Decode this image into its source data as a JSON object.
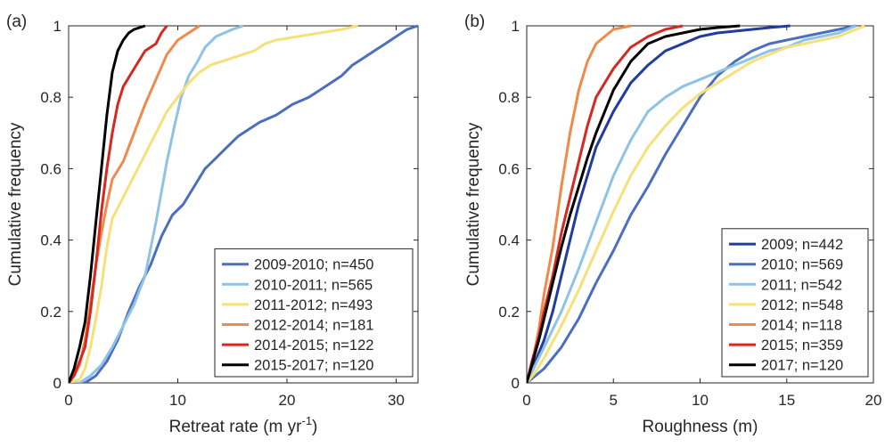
{
  "chart_data": [
    {
      "panel_label": "(a)",
      "type": "line",
      "xlabel": "Retreat rate (m yr",
      "xlabel_superscript": "-1",
      "xlabel_suffix": ")",
      "ylabel": "Cumulative frequency",
      "xlim": [
        0,
        32
      ],
      "ylim": [
        0,
        1
      ],
      "xticks": [
        "0",
        "10",
        "20",
        "30"
      ],
      "xtick_values": [
        0,
        10,
        20,
        30
      ],
      "yticks": [
        "0",
        "0.2",
        "0.4",
        "0.6",
        "0.8",
        "1"
      ],
      "ytick_values": [
        0,
        0.2,
        0.4,
        0.6,
        0.8,
        1
      ],
      "grid": false,
      "legend_position": "bottom-right",
      "series": [
        {
          "name": "2009-2010; n=450",
          "color": "#4a6fbf",
          "points": [
            [
              0,
              0
            ],
            [
              1.5,
              0
            ],
            [
              2.5,
              0.02
            ],
            [
              3.5,
              0.06
            ],
            [
              4.5,
              0.12
            ],
            [
              5.5,
              0.2
            ],
            [
              6.5,
              0.27
            ],
            [
              7.5,
              0.33
            ],
            [
              8.5,
              0.41
            ],
            [
              9.5,
              0.47
            ],
            [
              10.5,
              0.5
            ],
            [
              11.5,
              0.55
            ],
            [
              12.5,
              0.6
            ],
            [
              13.5,
              0.63
            ],
            [
              14.5,
              0.66
            ],
            [
              15.5,
              0.69
            ],
            [
              16.5,
              0.71
            ],
            [
              17.5,
              0.73
            ],
            [
              19,
              0.75
            ],
            [
              20.5,
              0.78
            ],
            [
              22,
              0.8
            ],
            [
              23.5,
              0.83
            ],
            [
              25,
              0.86
            ],
            [
              26,
              0.89
            ],
            [
              27,
              0.91
            ],
            [
              28,
              0.93
            ],
            [
              29,
              0.95
            ],
            [
              30,
              0.97
            ],
            [
              31,
              0.99
            ],
            [
              32,
              1
            ]
          ]
        },
        {
          "name": "2010-2011; n=565",
          "color": "#8fc3e6",
          "points": [
            [
              0,
              0
            ],
            [
              1,
              0
            ],
            [
              2,
              0.02
            ],
            [
              3,
              0.05
            ],
            [
              4,
              0.1
            ],
            [
              5,
              0.16
            ],
            [
              6,
              0.22
            ],
            [
              7,
              0.3
            ],
            [
              8,
              0.45
            ],
            [
              9,
              0.62
            ],
            [
              9.7,
              0.72
            ],
            [
              10.3,
              0.8
            ],
            [
              11,
              0.86
            ],
            [
              11.8,
              0.9
            ],
            [
              12.5,
              0.94
            ],
            [
              13.5,
              0.97
            ],
            [
              15,
              0.99
            ],
            [
              16,
              1
            ]
          ]
        },
        {
          "name": "2011-2012; n=493",
          "color": "#f5e07a",
          "points": [
            [
              0,
              0
            ],
            [
              1,
              0.01
            ],
            [
              1.5,
              0.04
            ],
            [
              2,
              0.1
            ],
            [
              2.5,
              0.18
            ],
            [
              3,
              0.27
            ],
            [
              3.5,
              0.38
            ],
            [
              4,
              0.46
            ],
            [
              5,
              0.52
            ],
            [
              6,
              0.58
            ],
            [
              7,
              0.64
            ],
            [
              8,
              0.7
            ],
            [
              9,
              0.76
            ],
            [
              10,
              0.8
            ],
            [
              11,
              0.84
            ],
            [
              12,
              0.87
            ],
            [
              13,
              0.89
            ],
            [
              14,
              0.9
            ],
            [
              15,
              0.91
            ],
            [
              16,
              0.92
            ],
            [
              17,
              0.93
            ],
            [
              18,
              0.95
            ],
            [
              19,
              0.96
            ],
            [
              21,
              0.97
            ],
            [
              23,
              0.98
            ],
            [
              25,
              0.99
            ],
            [
              26.5,
              1
            ]
          ]
        },
        {
          "name": "2012-2014; n=181",
          "color": "#f08a4b",
          "points": [
            [
              0,
              0
            ],
            [
              0.5,
              0.02
            ],
            [
              1,
              0.05
            ],
            [
              1.5,
              0.12
            ],
            [
              2,
              0.22
            ],
            [
              2.5,
              0.33
            ],
            [
              3,
              0.42
            ],
            [
              3.5,
              0.5
            ],
            [
              4,
              0.57
            ],
            [
              5,
              0.62
            ],
            [
              6,
              0.7
            ],
            [
              7,
              0.78
            ],
            [
              8,
              0.85
            ],
            [
              9,
              0.92
            ],
            [
              10,
              0.96
            ],
            [
              11,
              0.98
            ],
            [
              12,
              1
            ]
          ]
        },
        {
          "name": "2014-2015; n=122",
          "color": "#d7281f",
          "points": [
            [
              0,
              0
            ],
            [
              0.5,
              0.02
            ],
            [
              1,
              0.06
            ],
            [
              1.5,
              0.1
            ],
            [
              2,
              0.2
            ],
            [
              2.5,
              0.33
            ],
            [
              3,
              0.48
            ],
            [
              3.5,
              0.6
            ],
            [
              4,
              0.7
            ],
            [
              4.5,
              0.78
            ],
            [
              5,
              0.83
            ],
            [
              6,
              0.88
            ],
            [
              7,
              0.93
            ],
            [
              8,
              0.95
            ],
            [
              8.5,
              0.98
            ],
            [
              9,
              1
            ]
          ]
        },
        {
          "name": "2015-2017; n=120",
          "color": "#000000",
          "points": [
            [
              0,
              0
            ],
            [
              0.5,
              0.04
            ],
            [
              1,
              0.1
            ],
            [
              1.5,
              0.17
            ],
            [
              2,
              0.3
            ],
            [
              2.5,
              0.45
            ],
            [
              3,
              0.6
            ],
            [
              3.5,
              0.75
            ],
            [
              4,
              0.87
            ],
            [
              4.5,
              0.93
            ],
            [
              5,
              0.96
            ],
            [
              5.5,
              0.98
            ],
            [
              6,
              0.99
            ],
            [
              7,
              1
            ]
          ]
        }
      ]
    },
    {
      "panel_label": "(b)",
      "type": "line",
      "xlabel": "Roughness (m)",
      "xlabel_superscript": "",
      "xlabel_suffix": "",
      "ylabel": "Cumulative frequency",
      "xlim": [
        0,
        20
      ],
      "ylim": [
        0,
        1
      ],
      "xticks": [
        "0",
        "5",
        "10",
        "15",
        "20"
      ],
      "xtick_values": [
        0,
        5,
        10,
        15,
        20
      ],
      "yticks": [
        "0",
        "0.2",
        "0.4",
        "0.6",
        "0.8",
        "1"
      ],
      "ytick_values": [
        0,
        0.2,
        0.4,
        0.6,
        0.8,
        1
      ],
      "grid": false,
      "legend_position": "bottom-right",
      "series": [
        {
          "name": "2009; n=442",
          "color": "#1f3c9e",
          "points": [
            [
              0,
              0
            ],
            [
              0.5,
              0.06
            ],
            [
              1,
              0.12
            ],
            [
              1.5,
              0.2
            ],
            [
              2,
              0.3
            ],
            [
              2.5,
              0.4
            ],
            [
              3,
              0.5
            ],
            [
              3.5,
              0.58
            ],
            [
              4,
              0.66
            ],
            [
              5,
              0.76
            ],
            [
              6,
              0.84
            ],
            [
              7,
              0.89
            ],
            [
              8,
              0.93
            ],
            [
              9,
              0.95
            ],
            [
              10,
              0.97
            ],
            [
              11,
              0.98
            ],
            [
              12,
              0.985
            ],
            [
              13,
              0.99
            ],
            [
              14,
              0.995
            ],
            [
              15.2,
              1
            ]
          ]
        },
        {
          "name": "2010; n=569",
          "color": "#4a6fbf",
          "points": [
            [
              0,
              0
            ],
            [
              1,
              0.04
            ],
            [
              2,
              0.1
            ],
            [
              3,
              0.18
            ],
            [
              4,
              0.28
            ],
            [
              5,
              0.37
            ],
            [
              6,
              0.47
            ],
            [
              7,
              0.55
            ],
            [
              8,
              0.64
            ],
            [
              9,
              0.72
            ],
            [
              10,
              0.8
            ],
            [
              11,
              0.86
            ],
            [
              12,
              0.9
            ],
            [
              13,
              0.93
            ],
            [
              14,
              0.95
            ],
            [
              15,
              0.96
            ],
            [
              16,
              0.97
            ],
            [
              17,
              0.98
            ],
            [
              18,
              0.99
            ],
            [
              19,
              1
            ]
          ]
        },
        {
          "name": "2011; n=542",
          "color": "#8fc3e6",
          "points": [
            [
              0,
              0
            ],
            [
              0.5,
              0.05
            ],
            [
              1,
              0.1
            ],
            [
              2,
              0.2
            ],
            [
              3,
              0.32
            ],
            [
              4,
              0.45
            ],
            [
              5,
              0.58
            ],
            [
              6,
              0.68
            ],
            [
              7,
              0.76
            ],
            [
              8,
              0.8
            ],
            [
              9,
              0.83
            ],
            [
              10,
              0.85
            ],
            [
              11,
              0.87
            ],
            [
              12,
              0.89
            ],
            [
              13,
              0.91
            ],
            [
              14,
              0.93
            ],
            [
              15,
              0.94
            ],
            [
              16,
              0.96
            ],
            [
              17,
              0.97
            ],
            [
              18,
              0.98
            ],
            [
              19,
              1
            ]
          ]
        },
        {
          "name": "2012; n=548",
          "color": "#f5e07a",
          "points": [
            [
              0,
              0
            ],
            [
              0.5,
              0.03
            ],
            [
              1,
              0.07
            ],
            [
              2,
              0.16
            ],
            [
              3,
              0.26
            ],
            [
              4,
              0.37
            ],
            [
              5,
              0.48
            ],
            [
              6,
              0.58
            ],
            [
              7,
              0.66
            ],
            [
              8,
              0.72
            ],
            [
              9,
              0.77
            ],
            [
              10,
              0.81
            ],
            [
              11,
              0.84
            ],
            [
              12,
              0.87
            ],
            [
              13,
              0.9
            ],
            [
              14,
              0.92
            ],
            [
              15,
              0.94
            ],
            [
              16,
              0.95
            ],
            [
              17,
              0.96
            ],
            [
              18,
              0.97
            ],
            [
              19,
              0.99
            ],
            [
              19.5,
              1
            ]
          ]
        },
        {
          "name": "2014; n=118",
          "color": "#f08a4b",
          "points": [
            [
              0,
              0
            ],
            [
              0.3,
              0.05
            ],
            [
              0.7,
              0.15
            ],
            [
              1,
              0.25
            ],
            [
              1.5,
              0.38
            ],
            [
              2,
              0.55
            ],
            [
              2.5,
              0.7
            ],
            [
              3,
              0.82
            ],
            [
              3.5,
              0.9
            ],
            [
              4,
              0.95
            ],
            [
              4.5,
              0.97
            ],
            [
              5,
              0.99
            ],
            [
              6,
              1
            ]
          ]
        },
        {
          "name": "2015; n=359",
          "color": "#d7281f",
          "points": [
            [
              0,
              0
            ],
            [
              0.3,
              0.06
            ],
            [
              0.7,
              0.13
            ],
            [
              1,
              0.2
            ],
            [
              1.5,
              0.3
            ],
            [
              2,
              0.42
            ],
            [
              2.5,
              0.52
            ],
            [
              3,
              0.62
            ],
            [
              3.5,
              0.72
            ],
            [
              4,
              0.8
            ],
            [
              5,
              0.88
            ],
            [
              6,
              0.94
            ],
            [
              7,
              0.97
            ],
            [
              8,
              0.99
            ],
            [
              9,
              1
            ]
          ]
        },
        {
          "name": "2017; n=120",
          "color": "#000000",
          "points": [
            [
              0,
              0
            ],
            [
              0.3,
              0.05
            ],
            [
              0.7,
              0.12
            ],
            [
              1,
              0.18
            ],
            [
              1.5,
              0.28
            ],
            [
              2,
              0.38
            ],
            [
              2.5,
              0.47
            ],
            [
              3,
              0.55
            ],
            [
              3.5,
              0.63
            ],
            [
              4,
              0.7
            ],
            [
              5,
              0.82
            ],
            [
              6,
              0.9
            ],
            [
              7,
              0.95
            ],
            [
              8,
              0.97
            ],
            [
              9,
              0.98
            ],
            [
              10,
              0.99
            ],
            [
              11,
              0.995
            ],
            [
              12.3,
              1
            ]
          ]
        }
      ]
    }
  ]
}
